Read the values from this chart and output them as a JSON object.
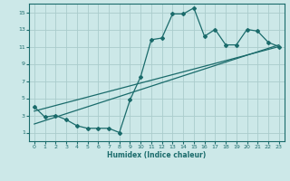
{
  "title": "",
  "xlabel": "Humidex (Indice chaleur)",
  "ylabel": "",
  "bg_color": "#cce8e8",
  "grid_color": "#aacccc",
  "line_color": "#1a6b6b",
  "xlim": [
    -0.5,
    23.5
  ],
  "ylim": [
    0,
    16
  ],
  "xticks": [
    0,
    1,
    2,
    3,
    4,
    5,
    6,
    7,
    8,
    9,
    10,
    11,
    12,
    13,
    14,
    15,
    16,
    17,
    18,
    19,
    20,
    21,
    22,
    23
  ],
  "yticks": [
    1,
    3,
    5,
    7,
    9,
    11,
    13,
    15
  ],
  "series1_x": [
    0,
    1,
    2,
    3,
    4,
    5,
    6,
    7,
    8,
    9,
    10,
    11,
    12,
    13,
    14,
    15,
    16,
    17,
    18,
    19,
    20,
    21,
    22,
    23
  ],
  "series1_y": [
    4.0,
    2.8,
    3.0,
    2.5,
    1.8,
    1.5,
    1.5,
    1.5,
    1.0,
    4.8,
    7.5,
    11.8,
    12.0,
    14.8,
    14.8,
    15.5,
    12.2,
    13.0,
    11.2,
    11.2,
    13.0,
    12.8,
    11.5,
    11.0
  ],
  "series2_x": [
    0,
    23
  ],
  "series2_y": [
    3.5,
    11.0
  ],
  "series3_x": [
    0,
    23
  ],
  "series3_y": [
    2.0,
    11.2
  ],
  "marker_style": "D",
  "marker_size": 2.0,
  "line_width": 0.9,
  "tick_fontsize": 4.5,
  "xlabel_fontsize": 5.5
}
